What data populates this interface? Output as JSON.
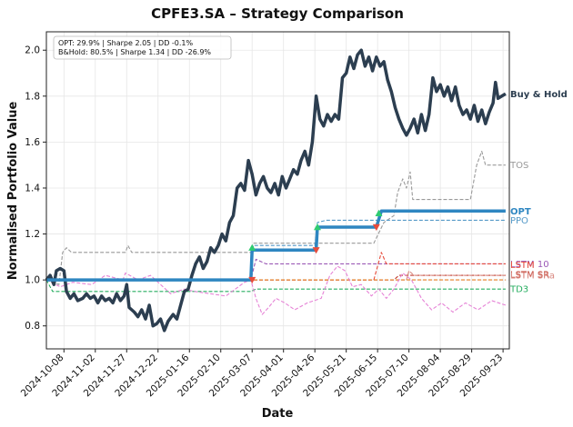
{
  "chart_data": {
    "type": "line",
    "title": "CPFE3.SA – Strategy Comparison",
    "xlabel": "Date",
    "ylabel": "Normalised Portfolio Value",
    "x_range": [
      "2024-09-24",
      "2025-09-28"
    ],
    "ylim": [
      0.7,
      2.08
    ],
    "y_ticks": [
      0.8,
      1.0,
      1.2,
      1.4,
      1.6,
      1.8,
      2.0
    ],
    "x_ticks": [
      "2024-10-08",
      "2024-11-02",
      "2024-11-27",
      "2024-12-22",
      "2025-01-16",
      "2025-02-10",
      "2025-03-07",
      "2025-04-01",
      "2025-04-26",
      "2025-05-21",
      "2025-06-15",
      "2025-07-10",
      "2025-08-04",
      "2025-08-29",
      "2025-09-23"
    ],
    "grid": true,
    "stats_box": {
      "line1": "OPT: 29.9% | Sharpe 2.05 | DD -0.1%",
      "line2": "B&Hold: 80.5% | Sharpe 1.34 | DD -26.9%"
    },
    "series": [
      {
        "name": "Buy & Hold",
        "color": "#2c3e50",
        "style": "solid",
        "width": 3.5,
        "points": [
          [
            "2024-09-24",
            1.0
          ],
          [
            "2024-09-27",
            1.02
          ],
          [
            "2024-09-30",
            0.98
          ],
          [
            "2024-10-02",
            1.04
          ],
          [
            "2024-10-05",
            1.05
          ],
          [
            "2024-10-08",
            1.04
          ],
          [
            "2024-10-10",
            0.95
          ],
          [
            "2024-10-13",
            0.92
          ],
          [
            "2024-10-16",
            0.94
          ],
          [
            "2024-10-19",
            0.91
          ],
          [
            "2024-10-23",
            0.92
          ],
          [
            "2024-10-26",
            0.94
          ],
          [
            "2024-10-29",
            0.92
          ],
          [
            "2024-11-01",
            0.93
          ],
          [
            "2024-11-04",
            0.9
          ],
          [
            "2024-11-07",
            0.93
          ],
          [
            "2024-11-10",
            0.91
          ],
          [
            "2024-11-13",
            0.92
          ],
          [
            "2024-11-16",
            0.9
          ],
          [
            "2024-11-19",
            0.94
          ],
          [
            "2024-11-22",
            0.91
          ],
          [
            "2024-11-25",
            0.93
          ],
          [
            "2024-11-27",
            0.98
          ],
          [
            "2024-11-29",
            0.88
          ],
          [
            "2024-12-03",
            0.86
          ],
          [
            "2024-12-06",
            0.84
          ],
          [
            "2024-12-09",
            0.87
          ],
          [
            "2024-12-12",
            0.83
          ],
          [
            "2024-12-15",
            0.89
          ],
          [
            "2024-12-18",
            0.8
          ],
          [
            "2024-12-21",
            0.81
          ],
          [
            "2024-12-24",
            0.83
          ],
          [
            "2024-12-27",
            0.78
          ],
          [
            "2024-12-30",
            0.82
          ],
          [
            "2025-01-03",
            0.85
          ],
          [
            "2025-01-06",
            0.83
          ],
          [
            "2025-01-09",
            0.89
          ],
          [
            "2025-01-12",
            0.95
          ],
          [
            "2025-01-15",
            0.96
          ],
          [
            "2025-01-18",
            1.02
          ],
          [
            "2025-01-21",
            1.07
          ],
          [
            "2025-01-24",
            1.1
          ],
          [
            "2025-01-27",
            1.05
          ],
          [
            "2025-01-30",
            1.08
          ],
          [
            "2025-02-02",
            1.14
          ],
          [
            "2025-02-05",
            1.12
          ],
          [
            "2025-02-08",
            1.15
          ],
          [
            "2025-02-11",
            1.2
          ],
          [
            "2025-02-14",
            1.17
          ],
          [
            "2025-02-17",
            1.25
          ],
          [
            "2025-02-20",
            1.28
          ],
          [
            "2025-02-23",
            1.4
          ],
          [
            "2025-02-26",
            1.42
          ],
          [
            "2025-03-01",
            1.39
          ],
          [
            "2025-03-04",
            1.52
          ],
          [
            "2025-03-07",
            1.46
          ],
          [
            "2025-03-10",
            1.37
          ],
          [
            "2025-03-13",
            1.42
          ],
          [
            "2025-03-16",
            1.45
          ],
          [
            "2025-03-19",
            1.4
          ],
          [
            "2025-03-22",
            1.38
          ],
          [
            "2025-03-25",
            1.42
          ],
          [
            "2025-03-28",
            1.37
          ],
          [
            "2025-03-31",
            1.45
          ],
          [
            "2025-04-03",
            1.4
          ],
          [
            "2025-04-06",
            1.44
          ],
          [
            "2025-04-09",
            1.48
          ],
          [
            "2025-04-12",
            1.46
          ],
          [
            "2025-04-15",
            1.52
          ],
          [
            "2025-04-18",
            1.56
          ],
          [
            "2025-04-21",
            1.5
          ],
          [
            "2025-04-24",
            1.6
          ],
          [
            "2025-04-27",
            1.8
          ],
          [
            "2025-04-30",
            1.7
          ],
          [
            "2025-05-03",
            1.67
          ],
          [
            "2025-05-06",
            1.72
          ],
          [
            "2025-05-09",
            1.69
          ],
          [
            "2025-05-12",
            1.72
          ],
          [
            "2025-05-15",
            1.7
          ],
          [
            "2025-05-18",
            1.88
          ],
          [
            "2025-05-21",
            1.9
          ],
          [
            "2025-05-24",
            1.97
          ],
          [
            "2025-05-27",
            1.92
          ],
          [
            "2025-05-30",
            1.98
          ],
          [
            "2025-06-02",
            2.0
          ],
          [
            "2025-06-05",
            1.93
          ],
          [
            "2025-06-08",
            1.97
          ],
          [
            "2025-06-11",
            1.91
          ],
          [
            "2025-06-14",
            1.97
          ],
          [
            "2025-06-17",
            1.93
          ],
          [
            "2025-06-20",
            1.95
          ],
          [
            "2025-06-23",
            1.87
          ],
          [
            "2025-06-26",
            1.82
          ],
          [
            "2025-06-29",
            1.75
          ],
          [
            "2025-07-02",
            1.7
          ],
          [
            "2025-07-05",
            1.66
          ],
          [
            "2025-07-08",
            1.63
          ],
          [
            "2025-07-11",
            1.66
          ],
          [
            "2025-07-14",
            1.7
          ],
          [
            "2025-07-17",
            1.64
          ],
          [
            "2025-07-20",
            1.72
          ],
          [
            "2025-07-23",
            1.65
          ],
          [
            "2025-07-26",
            1.72
          ],
          [
            "2025-07-29",
            1.88
          ],
          [
            "2025-08-01",
            1.82
          ],
          [
            "2025-08-04",
            1.85
          ],
          [
            "2025-08-07",
            1.8
          ],
          [
            "2025-08-10",
            1.84
          ],
          [
            "2025-08-13",
            1.78
          ],
          [
            "2025-08-16",
            1.84
          ],
          [
            "2025-08-19",
            1.76
          ],
          [
            "2025-08-22",
            1.72
          ],
          [
            "2025-08-25",
            1.74
          ],
          [
            "2025-08-28",
            1.7
          ],
          [
            "2025-08-31",
            1.76
          ],
          [
            "2025-09-03",
            1.69
          ],
          [
            "2025-09-06",
            1.74
          ],
          [
            "2025-09-09",
            1.68
          ],
          [
            "2025-09-12",
            1.73
          ],
          [
            "2025-09-15",
            1.77
          ],
          [
            "2025-09-17",
            1.86
          ],
          [
            "2025-09-19",
            1.79
          ],
          [
            "2025-09-22",
            1.8
          ],
          [
            "2025-09-25",
            1.81
          ]
        ]
      },
      {
        "name": "OPT",
        "color": "#2e86c1",
        "style": "solid",
        "width": 3.5,
        "points": [
          [
            "2024-09-24",
            1.0
          ],
          [
            "2025-03-06",
            1.0
          ],
          [
            "2025-03-07",
            1.13
          ],
          [
            "2025-04-27",
            1.13
          ],
          [
            "2025-04-28",
            1.23
          ],
          [
            "2025-06-14",
            1.23
          ],
          [
            "2025-06-18",
            1.3
          ],
          [
            "2025-09-25",
            1.3
          ]
        ]
      },
      {
        "name": "TOS",
        "color": "#999999",
        "style": "dashed",
        "width": 1.1,
        "points": [
          [
            "2024-09-24",
            1.0
          ],
          [
            "2024-10-04",
            0.98
          ],
          [
            "2024-10-07",
            1.12
          ],
          [
            "2024-10-10",
            1.14
          ],
          [
            "2024-10-14",
            1.12
          ],
          [
            "2024-11-26",
            1.12
          ],
          [
            "2024-11-28",
            1.15
          ],
          [
            "2024-12-01",
            1.12
          ],
          [
            "2025-03-06",
            1.12
          ],
          [
            "2025-03-08",
            1.16
          ],
          [
            "2025-06-12",
            1.16
          ],
          [
            "2025-06-20",
            1.25
          ],
          [
            "2025-06-28",
            1.28
          ],
          [
            "2025-07-01",
            1.38
          ],
          [
            "2025-07-05",
            1.44
          ],
          [
            "2025-07-08",
            1.4
          ],
          [
            "2025-07-11",
            1.47
          ],
          [
            "2025-07-13",
            1.35
          ],
          [
            "2025-08-28",
            1.35
          ],
          [
            "2025-09-02",
            1.5
          ],
          [
            "2025-09-06",
            1.56
          ],
          [
            "2025-09-09",
            1.5
          ],
          [
            "2025-09-25",
            1.5
          ]
        ]
      },
      {
        "name": "PPO",
        "color": "#5499c7",
        "style": "dashed",
        "width": 1.1,
        "points": [
          [
            "2024-09-24",
            1.0
          ],
          [
            "2025-03-06",
            1.0
          ],
          [
            "2025-03-08",
            1.15
          ],
          [
            "2025-04-26",
            1.15
          ],
          [
            "2025-04-28",
            1.25
          ],
          [
            "2025-05-05",
            1.26
          ],
          [
            "2025-09-25",
            1.26
          ]
        ]
      },
      {
        "name": "LSTM 10",
        "color": "#9b59b6",
        "style": "dashed",
        "width": 1.1,
        "points": [
          [
            "2024-09-24",
            1.0
          ],
          [
            "2025-03-06",
            1.0
          ],
          [
            "2025-03-10",
            1.09
          ],
          [
            "2025-03-18",
            1.07
          ],
          [
            "2025-09-25",
            1.07
          ]
        ]
      },
      {
        "name": "LSTM",
        "color": "#e74c3c",
        "style": "dashed",
        "width": 1.1,
        "points": [
          [
            "2024-09-24",
            1.0
          ],
          [
            "2025-03-06",
            1.0
          ],
          [
            "2025-03-08",
            1.0
          ],
          [
            "2025-06-12",
            1.0
          ],
          [
            "2025-06-18",
            1.12
          ],
          [
            "2025-06-22",
            1.07
          ],
          [
            "2025-09-25",
            1.07
          ]
        ]
      },
      {
        "name": "LSTM SR",
        "color": "#c0392b",
        "style": "dashed",
        "width": 1.1,
        "points": [
          [
            "2024-09-24",
            1.0
          ],
          [
            "2025-06-28",
            1.0
          ],
          [
            "2025-07-02",
            1.02
          ],
          [
            "2025-09-25",
            1.02
          ]
        ]
      },
      {
        "name": "LSTM SRa",
        "color": "#d98880",
        "style": "dashed",
        "width": 1.1,
        "points": [
          [
            "2024-09-24",
            1.0
          ],
          [
            "2025-07-08",
            1.0
          ],
          [
            "2025-07-10",
            1.04
          ],
          [
            "2025-07-14",
            1.02
          ],
          [
            "2025-09-25",
            1.02
          ]
        ]
      },
      {
        "name": "",
        "color": "#e67e22",
        "style": "dashed",
        "width": 1.1,
        "points": [
          [
            "2024-09-24",
            1.0
          ],
          [
            "2025-09-25",
            1.0
          ]
        ]
      },
      {
        "name": "TD3",
        "color": "#27ae60",
        "style": "dashed",
        "width": 1.1,
        "points": [
          [
            "2024-09-24",
            1.0
          ],
          [
            "2024-09-29",
            0.95
          ],
          [
            "2025-03-06",
            0.95
          ],
          [
            "2025-03-10",
            0.96
          ],
          [
            "2025-09-25",
            0.96
          ]
        ]
      },
      {
        "name": "",
        "color": "#e683d6",
        "style": "dashed",
        "width": 1.1,
        "points": [
          [
            "2024-09-24",
            1.0
          ],
          [
            "2024-10-05",
            0.97
          ],
          [
            "2024-10-15",
            0.99
          ],
          [
            "2024-10-30",
            0.98
          ],
          [
            "2024-11-10",
            1.02
          ],
          [
            "2024-11-24",
            1.0
          ],
          [
            "2024-11-26",
            1.03
          ],
          [
            "2024-12-06",
            1.0
          ],
          [
            "2024-12-16",
            1.02
          ],
          [
            "2025-01-01",
            0.94
          ],
          [
            "2025-01-12",
            0.96
          ],
          [
            "2025-01-20",
            0.95
          ],
          [
            "2025-02-14",
            0.93
          ],
          [
            "2025-03-01",
            0.99
          ],
          [
            "2025-03-06",
            1.0
          ],
          [
            "2025-03-10",
            0.92
          ],
          [
            "2025-03-15",
            0.85
          ],
          [
            "2025-03-20",
            0.88
          ],
          [
            "2025-03-26",
            0.92
          ],
          [
            "2025-04-02",
            0.9
          ],
          [
            "2025-04-10",
            0.87
          ],
          [
            "2025-04-20",
            0.9
          ],
          [
            "2025-05-01",
            0.92
          ],
          [
            "2025-05-08",
            1.02
          ],
          [
            "2025-05-14",
            1.06
          ],
          [
            "2025-05-20",
            1.04
          ],
          [
            "2025-05-26",
            0.97
          ],
          [
            "2025-06-02",
            0.98
          ],
          [
            "2025-06-10",
            0.93
          ],
          [
            "2025-06-16",
            0.96
          ],
          [
            "2025-06-22",
            0.92
          ],
          [
            "2025-06-28",
            0.96
          ],
          [
            "2025-07-05",
            1.03
          ],
          [
            "2025-07-12",
            1.0
          ],
          [
            "2025-07-20",
            0.92
          ],
          [
            "2025-07-28",
            0.87
          ],
          [
            "2025-08-05",
            0.9
          ],
          [
            "2025-08-14",
            0.86
          ],
          [
            "2025-08-24",
            0.9
          ],
          [
            "2025-09-03",
            0.87
          ],
          [
            "2025-09-14",
            0.91
          ],
          [
            "2025-09-25",
            0.89
          ]
        ]
      }
    ],
    "trade_markers": [
      {
        "date": "2025-03-07",
        "value": 1.14,
        "type": "buy"
      },
      {
        "date": "2025-03-07",
        "value": 1.0,
        "type": "sell"
      },
      {
        "date": "2025-04-28",
        "value": 1.23,
        "type": "buy"
      },
      {
        "date": "2025-04-27",
        "value": 1.13,
        "type": "sell"
      },
      {
        "date": "2025-06-16",
        "value": 1.29,
        "type": "buy"
      },
      {
        "date": "2025-06-14",
        "value": 1.23,
        "type": "sell"
      }
    ],
    "marker_colors": {
      "buy": "#2ecc71",
      "sell": "#e74c3c"
    }
  }
}
